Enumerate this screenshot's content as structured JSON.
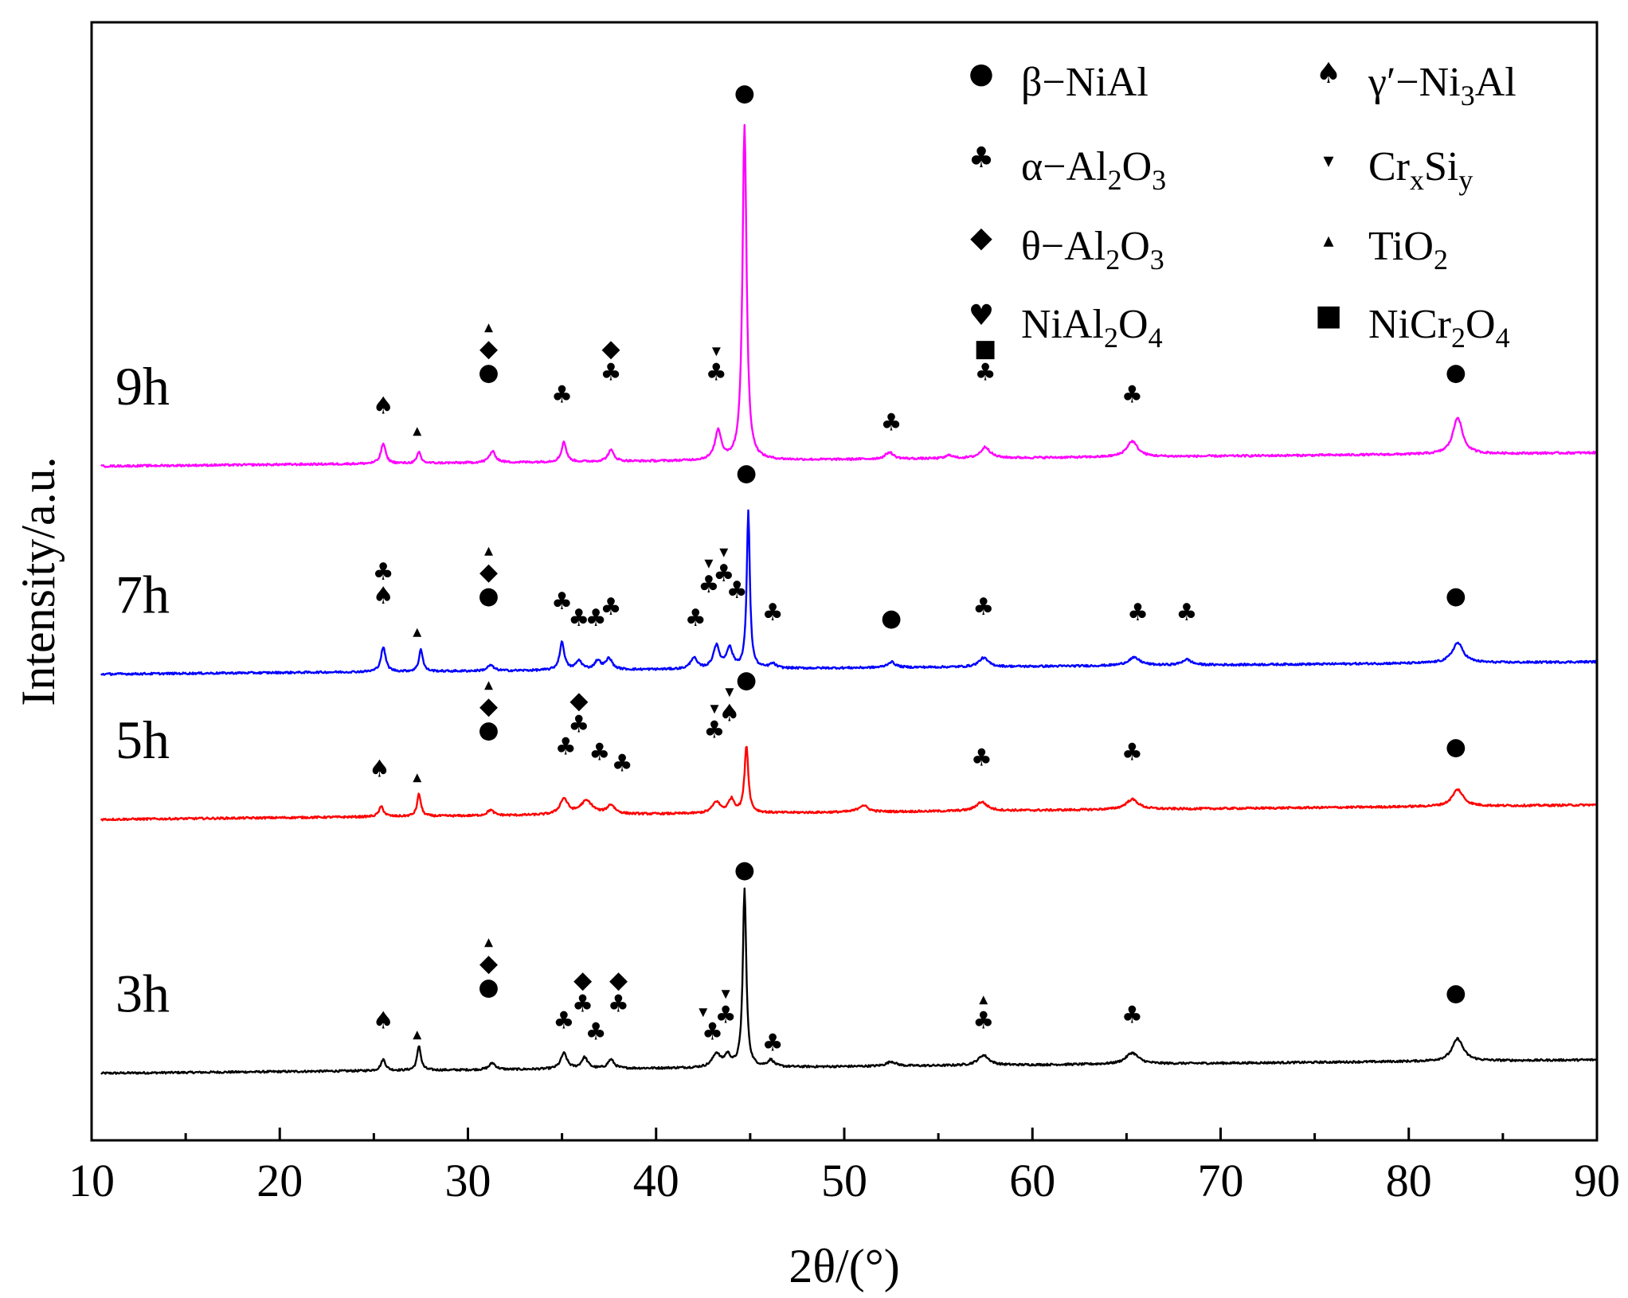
{
  "chart_data": {
    "type": "line",
    "title": "",
    "xlabel": "2θ/(°)",
    "ylabel": "Intensity/a.u.",
    "xlim": [
      10,
      90
    ],
    "xticks": [
      10,
      20,
      30,
      40,
      50,
      60,
      70,
      80,
      90
    ],
    "ylim": [
      0,
      100
    ],
    "grid": false,
    "legend_position": "top-right",
    "colors": {
      "axis": "#000000",
      "marker": "#000000"
    },
    "legend": [
      {
        "symbol": "circle",
        "glyph": "●",
        "label": "β−NiAl"
      },
      {
        "symbol": "spade",
        "glyph": "♠",
        "label": "γ′−Ni3Al"
      },
      {
        "symbol": "club",
        "glyph": "♣",
        "label": "α−Al2O3"
      },
      {
        "symbol": "dash-down",
        "glyph": "▾",
        "label": "CrxSiy"
      },
      {
        "symbol": "diamond",
        "glyph": "◆",
        "label": "θ−Al2O3"
      },
      {
        "symbol": "dash-up",
        "glyph": "▴",
        "label": "TiO2"
      },
      {
        "symbol": "heart",
        "glyph": "♥",
        "label": "NiAl2O4"
      },
      {
        "symbol": "square",
        "glyph": "■",
        "label": "NiCr2O4"
      }
    ],
    "series": [
      {
        "name": "3h",
        "color": "#000000",
        "baseline": [
          6.0,
          7.2
        ],
        "noise": 0.18,
        "peaks": [
          [
            25.5,
            1.0,
            0.15
          ],
          [
            27.4,
            2.2,
            0.12
          ],
          [
            31.3,
            0.6,
            0.2
          ],
          [
            35.1,
            1.4,
            0.2
          ],
          [
            36.2,
            1.0,
            0.2
          ],
          [
            37.6,
            0.8,
            0.2
          ],
          [
            43.2,
            1.2,
            0.25
          ],
          [
            43.8,
            1.0,
            0.2
          ],
          [
            44.7,
            16.0,
            0.11
          ],
          [
            46.1,
            0.6,
            0.2
          ],
          [
            52.5,
            0.4,
            0.3
          ],
          [
            57.4,
            0.9,
            0.35
          ],
          [
            65.3,
            1.0,
            0.4
          ],
          [
            82.6,
            2.0,
            0.35
          ]
        ],
        "markers": [
          {
            "x": 25.5,
            "y": 10.0,
            "symbols": [
              "spade"
            ]
          },
          {
            "x": 27.3,
            "y": 9.0,
            "symbols": [
              "dash-up"
            ]
          },
          {
            "x": 31.1,
            "y": 13.0,
            "symbols": [
              "dash-up",
              "diamond",
              "circle"
            ]
          },
          {
            "x": 35.1,
            "y": 10.0,
            "symbols": [
              "club"
            ]
          },
          {
            "x": 36.1,
            "y": 11.5,
            "symbols": [
              "diamond",
              "club"
            ]
          },
          {
            "x": 36.8,
            "y": 9.0,
            "symbols": [
              "club"
            ]
          },
          {
            "x": 38.0,
            "y": 11.5,
            "symbols": [
              "diamond",
              "club"
            ]
          },
          {
            "x": 42.5,
            "y": 11.0,
            "symbols": [
              "dash-down"
            ]
          },
          {
            "x": 43.0,
            "y": 9.0,
            "symbols": [
              "club"
            ]
          },
          {
            "x": 43.7,
            "y": 10.5,
            "symbols": [
              "dash-down",
              "club"
            ]
          },
          {
            "x": 44.7,
            "y": 23.5,
            "symbols": [
              "circle"
            ]
          },
          {
            "x": 46.2,
            "y": 8.0,
            "symbols": [
              "club"
            ]
          },
          {
            "x": 57.4,
            "y": 10.0,
            "symbols": [
              "dash-up",
              "club"
            ]
          },
          {
            "x": 65.3,
            "y": 10.5,
            "symbols": [
              "club"
            ]
          },
          {
            "x": 82.5,
            "y": 12.5,
            "symbols": [
              "circle"
            ]
          }
        ]
      },
      {
        "name": "5h",
        "color": "#ff0000",
        "baseline": [
          28.7,
          30.0
        ],
        "noise": 0.18,
        "peaks": [
          [
            25.4,
            0.9,
            0.15
          ],
          [
            27.4,
            2.0,
            0.12
          ],
          [
            31.2,
            0.5,
            0.2
          ],
          [
            35.1,
            1.4,
            0.25
          ],
          [
            36.3,
            1.2,
            0.4
          ],
          [
            37.6,
            0.8,
            0.25
          ],
          [
            43.2,
            1.0,
            0.25
          ],
          [
            44.0,
            1.2,
            0.2
          ],
          [
            44.8,
            6.0,
            0.12
          ],
          [
            51.0,
            0.6,
            0.3
          ],
          [
            57.3,
            0.8,
            0.35
          ],
          [
            65.3,
            0.9,
            0.4
          ],
          [
            82.6,
            1.5,
            0.35
          ]
        ],
        "markers": [
          {
            "x": 25.3,
            "y": 32.5,
            "symbols": [
              "spade"
            ]
          },
          {
            "x": 27.3,
            "y": 32.0,
            "symbols": [
              "dash-up"
            ]
          },
          {
            "x": 31.1,
            "y": 36.0,
            "symbols": [
              "dash-up",
              "diamond",
              "circle"
            ]
          },
          {
            "x": 35.2,
            "y": 34.5,
            "symbols": [
              "club"
            ]
          },
          {
            "x": 35.9,
            "y": 36.5,
            "symbols": [
              "diamond",
              "club"
            ]
          },
          {
            "x": 37.0,
            "y": 34.0,
            "symbols": [
              "club"
            ]
          },
          {
            "x": 38.2,
            "y": 33.0,
            "symbols": [
              "club"
            ]
          },
          {
            "x": 43.1,
            "y": 36.0,
            "symbols": [
              "dash-down",
              "club"
            ]
          },
          {
            "x": 43.9,
            "y": 37.5,
            "symbols": [
              "dash-down",
              "spade"
            ]
          },
          {
            "x": 44.8,
            "y": 40.5,
            "symbols": [
              "circle"
            ]
          },
          {
            "x": 57.3,
            "y": 33.5,
            "symbols": [
              "club"
            ]
          },
          {
            "x": 65.3,
            "y": 34.0,
            "symbols": [
              "club"
            ]
          },
          {
            "x": 82.5,
            "y": 34.5,
            "symbols": [
              "circle"
            ]
          }
        ]
      },
      {
        "name": "7h",
        "color": "#0000ff",
        "baseline": [
          41.7,
          42.8
        ],
        "noise": 0.18,
        "peaks": [
          [
            25.5,
            2.2,
            0.15
          ],
          [
            27.5,
            2.0,
            0.12
          ],
          [
            31.2,
            0.5,
            0.2
          ],
          [
            35.0,
            2.5,
            0.15
          ],
          [
            35.9,
            0.8,
            0.2
          ],
          [
            36.9,
            0.8,
            0.2
          ],
          [
            37.5,
            1.0,
            0.2
          ],
          [
            42.0,
            1.0,
            0.2
          ],
          [
            43.2,
            2.0,
            0.2
          ],
          [
            43.9,
            1.8,
            0.2
          ],
          [
            44.9,
            14.0,
            0.1
          ],
          [
            46.2,
            0.4,
            0.2
          ],
          [
            52.5,
            0.5,
            0.25
          ],
          [
            57.4,
            0.8,
            0.3
          ],
          [
            65.4,
            0.7,
            0.4
          ],
          [
            68.2,
            0.5,
            0.3
          ],
          [
            82.6,
            1.8,
            0.35
          ]
        ],
        "markers": [
          {
            "x": 25.5,
            "y": 48.0,
            "symbols": [
              "club",
              "spade"
            ]
          },
          {
            "x": 27.3,
            "y": 45.0,
            "symbols": [
              "dash-up"
            ]
          },
          {
            "x": 31.1,
            "y": 48.0,
            "symbols": [
              "dash-up",
              "diamond",
              "circle"
            ]
          },
          {
            "x": 35.0,
            "y": 47.5,
            "symbols": [
              "club"
            ]
          },
          {
            "x": 35.9,
            "y": 46.0,
            "symbols": [
              "club"
            ]
          },
          {
            "x": 36.8,
            "y": 46.0,
            "symbols": [
              "club"
            ]
          },
          {
            "x": 37.6,
            "y": 47.0,
            "symbols": [
              "club"
            ]
          },
          {
            "x": 42.1,
            "y": 46.0,
            "symbols": [
              "club"
            ]
          },
          {
            "x": 42.8,
            "y": 49.0,
            "symbols": [
              "dash-down",
              "club"
            ]
          },
          {
            "x": 43.6,
            "y": 50.0,
            "symbols": [
              "dash-down",
              "club"
            ]
          },
          {
            "x": 44.3,
            "y": 48.5,
            "symbols": [
              "club"
            ]
          },
          {
            "x": 44.8,
            "y": 59.0,
            "symbols": [
              "circle"
            ]
          },
          {
            "x": 46.2,
            "y": 46.5,
            "symbols": [
              "club"
            ]
          },
          {
            "x": 52.5,
            "y": 46.0,
            "symbols": [
              "circle"
            ]
          },
          {
            "x": 57.4,
            "y": 47.0,
            "symbols": [
              "club"
            ]
          },
          {
            "x": 65.6,
            "y": 46.5,
            "symbols": [
              "club"
            ]
          },
          {
            "x": 68.2,
            "y": 46.5,
            "symbols": [
              "club"
            ]
          },
          {
            "x": 82.5,
            "y": 48.0,
            "symbols": [
              "circle"
            ]
          }
        ]
      },
      {
        "name": "9h",
        "color": "#ff00ff",
        "baseline": [
          60.3,
          61.5
        ],
        "noise": 0.18,
        "peaks": [
          [
            25.5,
            1.8,
            0.15
          ],
          [
            27.4,
            1.0,
            0.12
          ],
          [
            31.3,
            1.0,
            0.2
          ],
          [
            35.1,
            1.8,
            0.15
          ],
          [
            37.6,
            1.0,
            0.2
          ],
          [
            43.3,
            2.6,
            0.2
          ],
          [
            44.7,
            30.0,
            0.13
          ],
          [
            52.4,
            0.6,
            0.25
          ],
          [
            55.6,
            0.3,
            0.2
          ],
          [
            57.5,
            1.0,
            0.3
          ],
          [
            65.3,
            1.4,
            0.35
          ],
          [
            82.6,
            3.3,
            0.3
          ]
        ],
        "markers": [
          {
            "x": 25.5,
            "y": 65.0,
            "symbols": [
              "spade"
            ]
          },
          {
            "x": 27.3,
            "y": 63.0,
            "symbols": [
              "dash-up"
            ]
          },
          {
            "x": 31.1,
            "y": 68.0,
            "symbols": [
              "dash-up",
              "diamond",
              "circle"
            ]
          },
          {
            "x": 35.0,
            "y": 66.0,
            "symbols": [
              "club"
            ]
          },
          {
            "x": 37.6,
            "y": 68.0,
            "symbols": [
              "diamond",
              "club"
            ]
          },
          {
            "x": 43.2,
            "y": 68.0,
            "symbols": [
              "dash-down",
              "club"
            ]
          },
          {
            "x": 44.7,
            "y": 93.0,
            "symbols": [
              "circle"
            ]
          },
          {
            "x": 52.5,
            "y": 63.5,
            "symbols": [
              "club"
            ]
          },
          {
            "x": 57.5,
            "y": 68.0,
            "symbols": [
              "square",
              "club"
            ]
          },
          {
            "x": 65.3,
            "y": 66.0,
            "symbols": [
              "club"
            ]
          },
          {
            "x": 82.5,
            "y": 68.0,
            "symbols": [
              "circle"
            ]
          }
        ]
      }
    ]
  }
}
